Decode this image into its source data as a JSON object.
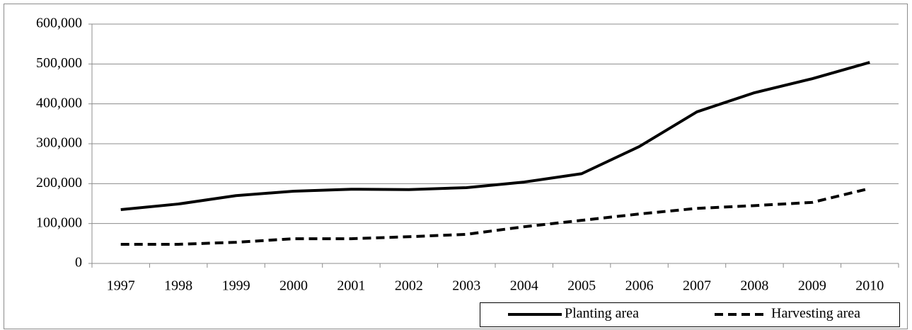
{
  "chart_data": {
    "type": "line",
    "categories": [
      "1997",
      "1998",
      "1999",
      "2000",
      "2001",
      "2002",
      "2003",
      "2004",
      "2005",
      "2006",
      "2007",
      "2008",
      "2009",
      "2010"
    ],
    "series": [
      {
        "name": "Planting area",
        "color": "#000000",
        "line_style": "solid",
        "values": [
          135000,
          149000,
          170000,
          181000,
          186000,
          185000,
          190000,
          204000,
          225000,
          293000,
          380000,
          428000,
          463000,
          504000
        ]
      },
      {
        "name": "Harvesting area",
        "color": "#000000",
        "line_style": "dashed",
        "values": [
          48000,
          48000,
          53000,
          62000,
          62000,
          67000,
          73000,
          92000,
          108000,
          124000,
          138000,
          145000,
          153000,
          188000
        ]
      }
    ],
    "ylim": [
      0,
      600000
    ],
    "yticks": [
      0,
      {
        "value": 100000,
        "label": "100,000"
      },
      {
        "value": 200000,
        "label": "200,000"
      },
      {
        "value": 300000,
        "label": "300,000"
      },
      {
        "value": 400000,
        "label": "400,000"
      },
      {
        "value": 500000,
        "label": "500,000"
      },
      {
        "value": 600000,
        "label": "600,000"
      }
    ],
    "grid": true,
    "legend": "bottom-right"
  }
}
